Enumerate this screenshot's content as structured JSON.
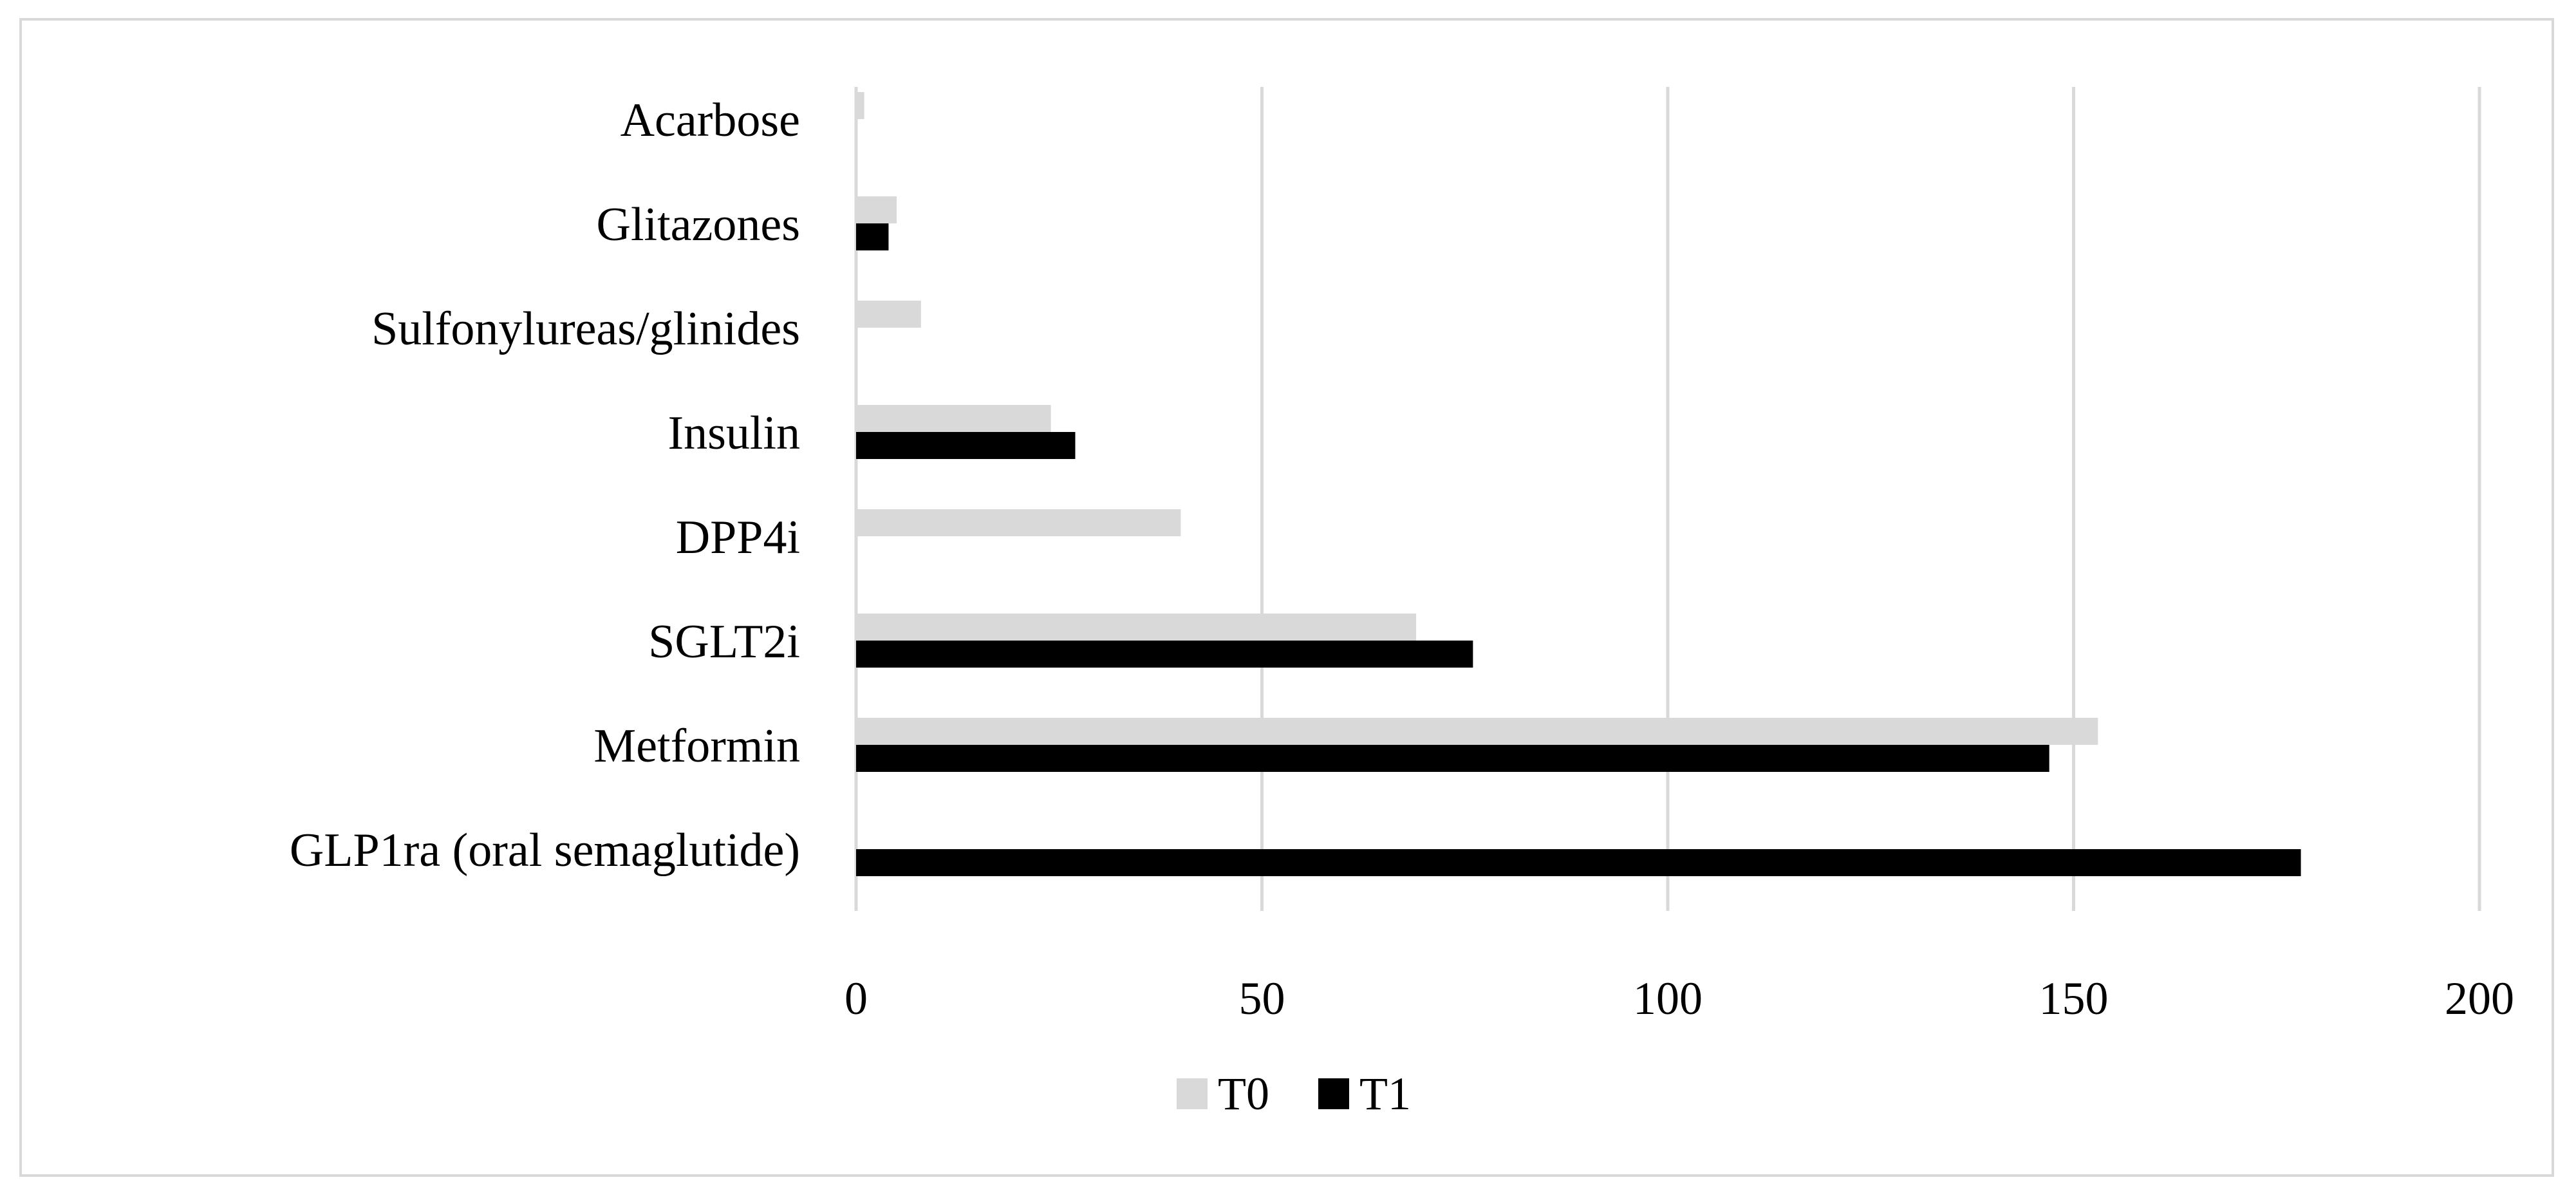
{
  "chart_data": {
    "type": "bar",
    "orientation": "horizontal",
    "categories": [
      "GLP1ra (oral semaglutide)",
      "Metformin",
      "SGLT2i",
      "DPP4i",
      "Insulin",
      "Sulfonylureas/glinides",
      "Glitazones",
      "Acarbose"
    ],
    "series": [
      {
        "name": "T0",
        "color": "#d9d9d9",
        "values": [
          0,
          153,
          69,
          40,
          24,
          8,
          5,
          1
        ]
      },
      {
        "name": "T1",
        "color": "#000000",
        "values": [
          178,
          147,
          76,
          0,
          27,
          0,
          4,
          0
        ]
      }
    ],
    "xlim": [
      0,
      200
    ],
    "xticks": [
      "0",
      "50",
      "100",
      "150",
      "200"
    ],
    "xtick_values": [
      0,
      50,
      100,
      150,
      200
    ],
    "title": "",
    "xlabel": "",
    "ylabel": "",
    "grid": "vertical",
    "gridColor": "#d9d9d9",
    "legend": {
      "position": "bottom",
      "items": [
        {
          "label": "T0",
          "color": "#d9d9d9"
        },
        {
          "label": "T1",
          "color": "#000000"
        }
      ]
    }
  }
}
